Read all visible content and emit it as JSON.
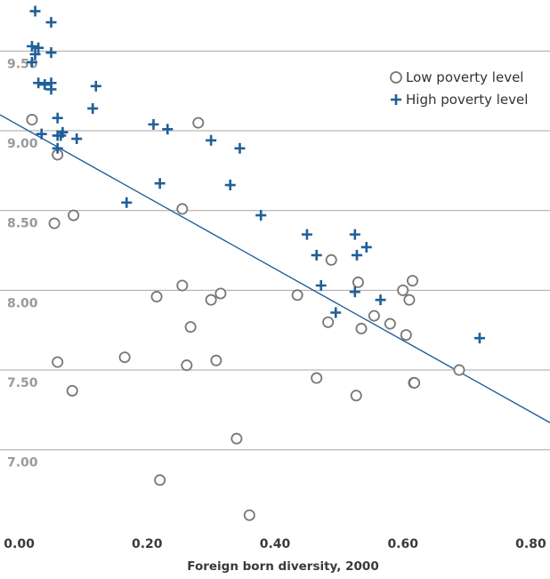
{
  "chart_data": {
    "type": "scatter",
    "title": "",
    "xlabel": "Foreign born diversity, 2000",
    "ylabel": "",
    "xlim": [
      -0.03,
      0.83
    ],
    "ylim": [
      6.53,
      9.82
    ],
    "x_ticks": [
      0.0,
      0.2,
      0.4,
      0.6,
      0.8
    ],
    "x_tick_labels": [
      "0.00",
      "0.20",
      "0.40",
      "0.60",
      "0.80"
    ],
    "y_ticks": [
      7.0,
      7.5,
      8.0,
      8.5,
      9.0,
      9.5
    ],
    "y_tick_labels": [
      "7.00",
      "7.50",
      "8.00",
      "8.50",
      "9.00",
      "9.50"
    ],
    "grid": "horizontal",
    "legend_position": "top-right",
    "trendline": {
      "x": [
        -0.03,
        0.83
      ],
      "y": [
        9.1,
        7.17
      ],
      "color": "#1f5f99"
    },
    "series": [
      {
        "name": "Low poverty level",
        "marker": "circle",
        "color": "#777777",
        "x": [
          0.02,
          0.06,
          0.055,
          0.085,
          0.06,
          0.083,
          0.165,
          0.215,
          0.22,
          0.255,
          0.255,
          0.262,
          0.268,
          0.28,
          0.3,
          0.308,
          0.315,
          0.34,
          0.36,
          0.435,
          0.465,
          0.483,
          0.488,
          0.527,
          0.53,
          0.535,
          0.555,
          0.58,
          0.6,
          0.605,
          0.61,
          0.615,
          0.617,
          0.618,
          0.688
        ],
        "y": [
          9.07,
          8.85,
          8.42,
          8.47,
          7.55,
          7.37,
          7.58,
          7.96,
          6.81,
          8.51,
          8.03,
          7.53,
          7.77,
          9.05,
          7.94,
          7.56,
          7.98,
          7.07,
          6.59,
          7.97,
          7.45,
          7.8,
          8.19,
          7.34,
          8.05,
          7.76,
          7.84,
          7.79,
          8.0,
          7.72,
          7.94,
          8.06,
          7.42,
          7.42,
          7.5
        ]
      },
      {
        "name": "High poverty level",
        "marker": "plus",
        "color": "#1f5f99",
        "x": [
          0.025,
          0.05,
          0.02,
          0.03,
          0.05,
          0.025,
          0.02,
          0.03,
          0.05,
          0.05,
          0.04,
          0.06,
          0.068,
          0.06,
          0.035,
          0.065,
          0.06,
          0.09,
          0.115,
          0.12,
          0.168,
          0.21,
          0.22,
          0.232,
          0.3,
          0.33,
          0.345,
          0.378,
          0.45,
          0.465,
          0.472,
          0.495,
          0.525,
          0.525,
          0.528,
          0.543,
          0.565,
          0.72
        ],
        "y": [
          9.75,
          9.68,
          9.53,
          9.52,
          9.49,
          9.48,
          9.43,
          9.3,
          9.3,
          9.26,
          9.29,
          9.08,
          8.99,
          8.97,
          8.98,
          8.97,
          8.89,
          8.95,
          9.14,
          9.28,
          8.55,
          9.04,
          8.67,
          9.01,
          8.94,
          8.66,
          8.89,
          8.47,
          8.35,
          8.22,
          8.03,
          7.86,
          7.99,
          8.35,
          8.22,
          8.27,
          7.94,
          7.7
        ]
      }
    ]
  }
}
